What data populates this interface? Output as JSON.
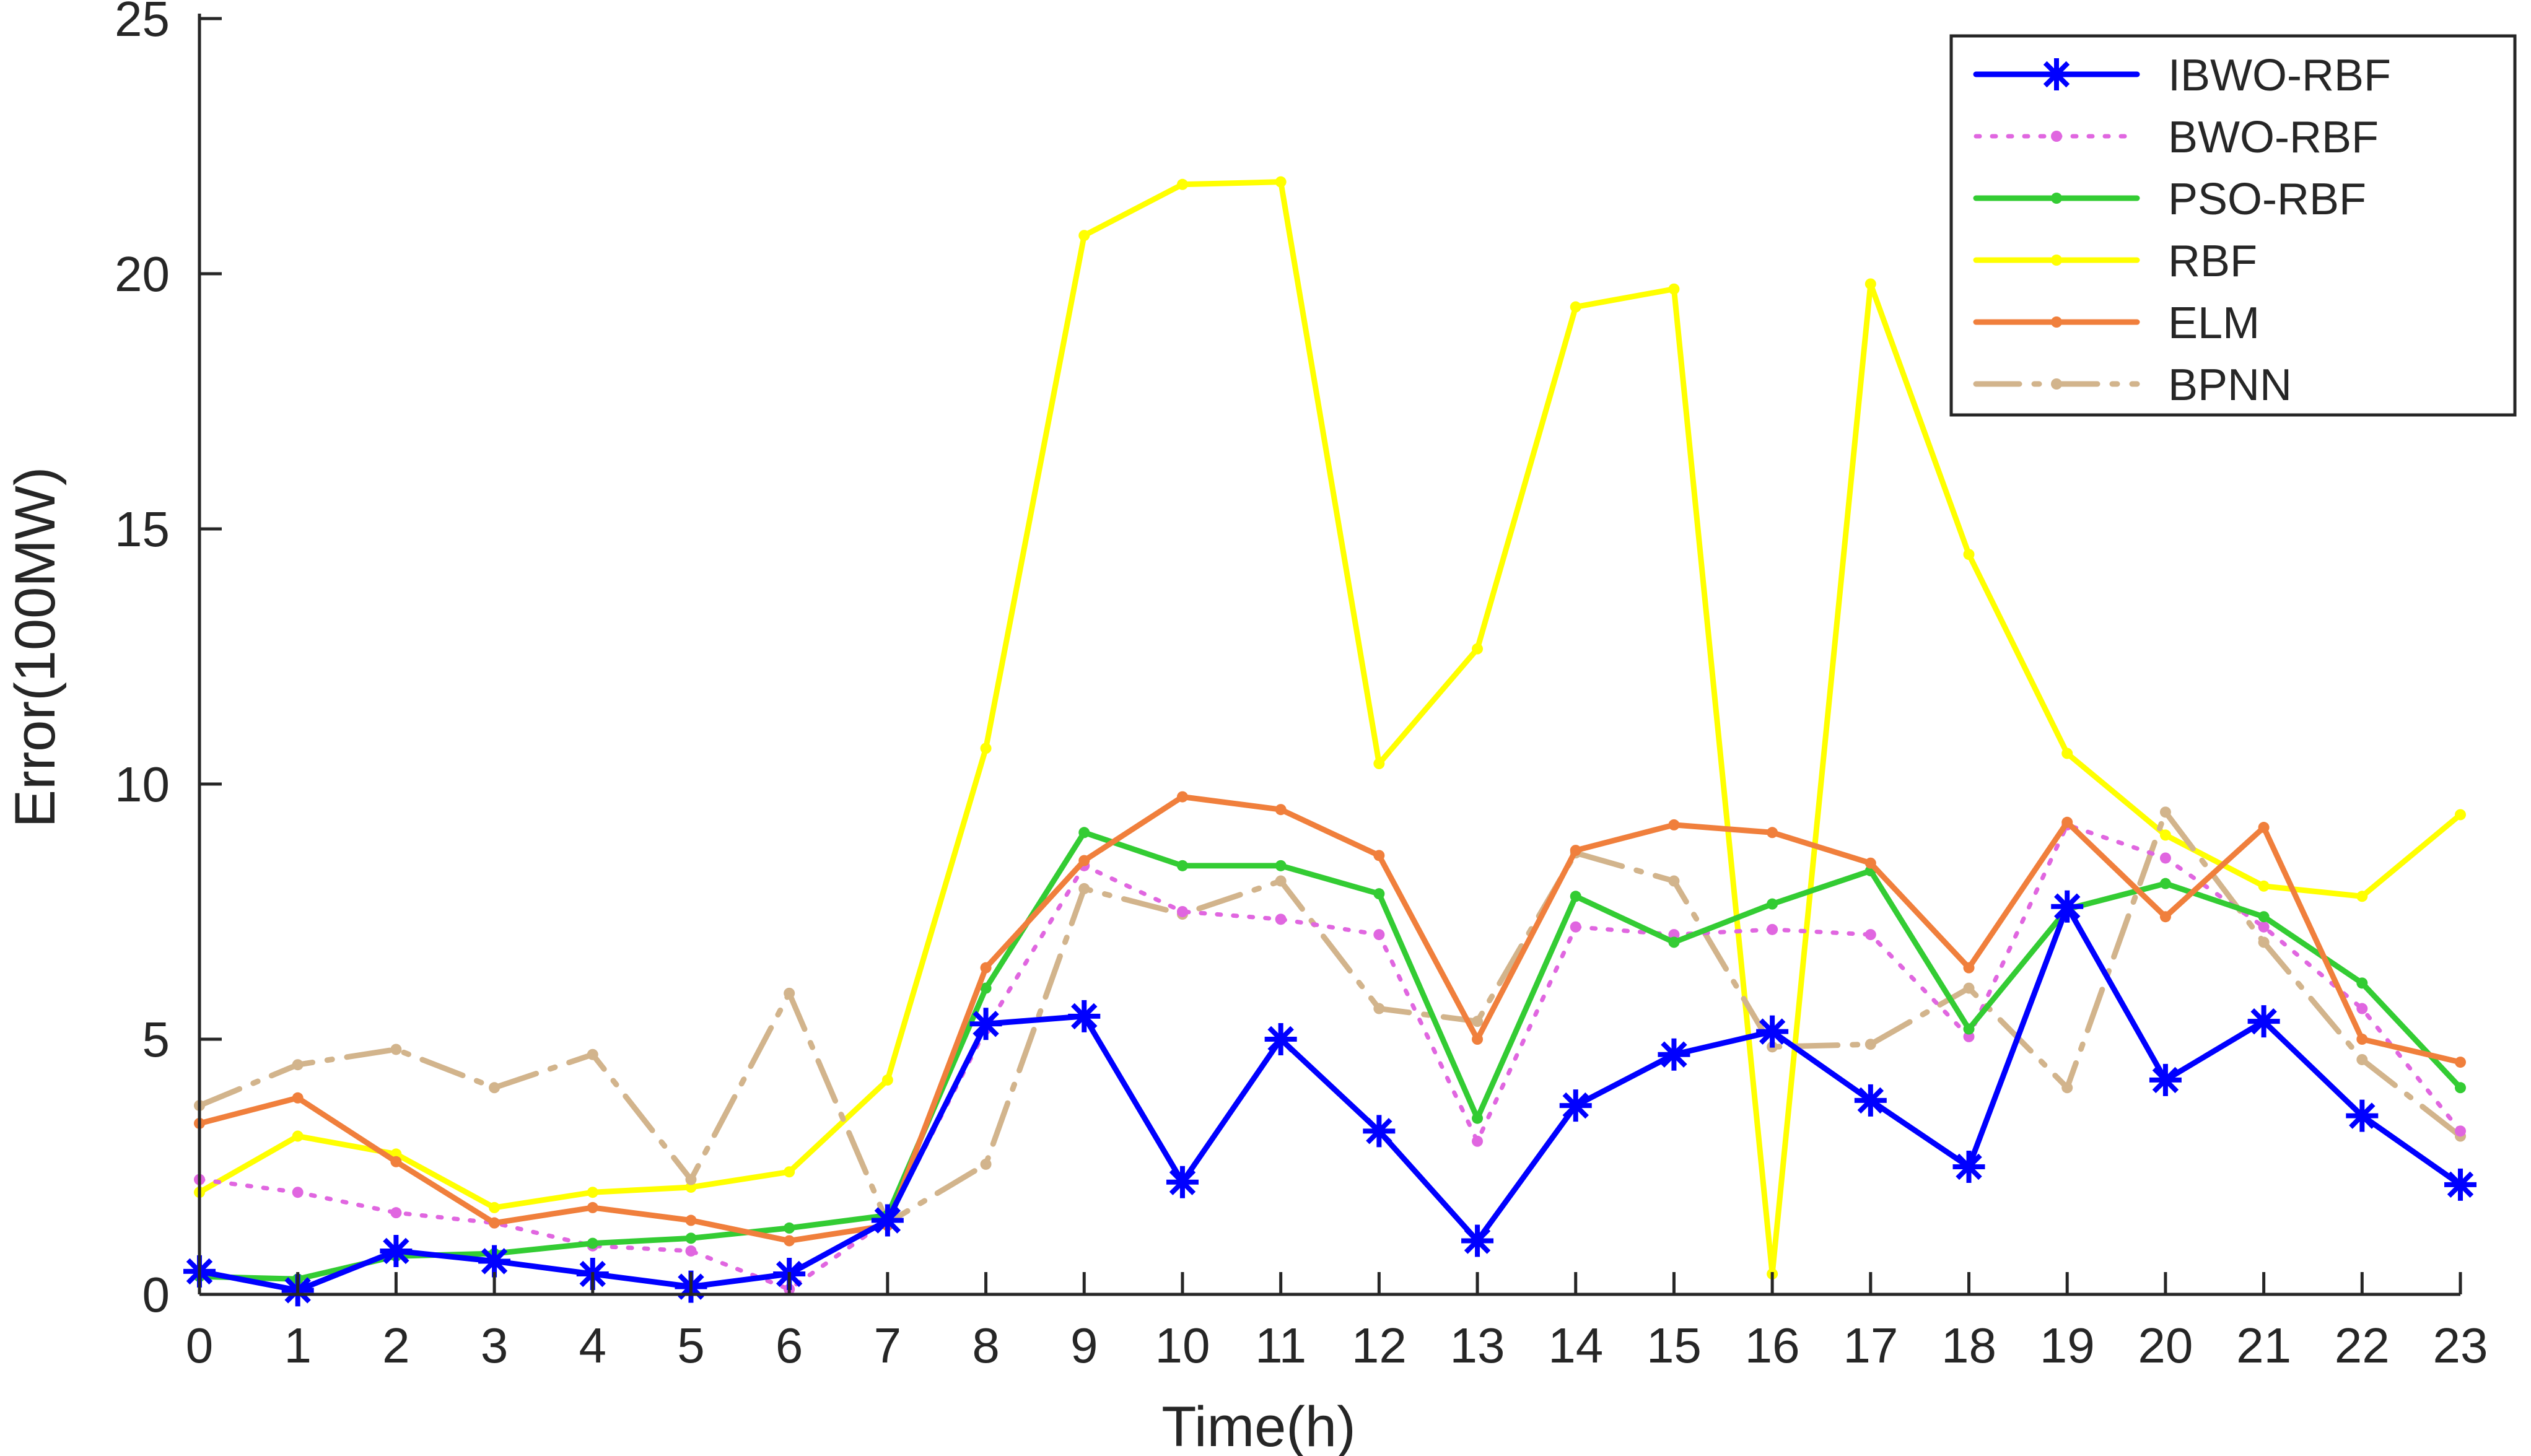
{
  "chart_data": {
    "type": "line",
    "title": "",
    "xlabel": "Time(h)",
    "ylabel": "Error(100MW)",
    "x": [
      0,
      1,
      2,
      3,
      4,
      5,
      6,
      7,
      8,
      9,
      10,
      11,
      12,
      13,
      14,
      15,
      16,
      17,
      18,
      19,
      20,
      21,
      22,
      23
    ],
    "xlim": [
      0,
      23
    ],
    "ylim": [
      0,
      25
    ],
    "yticks": [
      0,
      5,
      10,
      15,
      20,
      25
    ],
    "grid": false,
    "legend_position": "top-right",
    "series": [
      {
        "name": "IBWO-RBF",
        "color": "#0000ff",
        "marker": "asterisk",
        "line": "solid",
        "values": [
          0.45,
          0.08,
          0.85,
          0.65,
          0.4,
          0.15,
          0.4,
          1.45,
          5.3,
          5.45,
          2.2,
          5.0,
          3.2,
          1.05,
          3.7,
          4.7,
          5.15,
          3.8,
          2.5,
          7.6,
          4.2,
          5.35,
          3.5,
          2.15
        ]
      },
      {
        "name": "BWO-RBF",
        "color": "#e066e0",
        "marker": "dot",
        "line": "dotted",
        "values": [
          2.25,
          2.0,
          1.6,
          1.4,
          0.95,
          0.85,
          0.1,
          1.45,
          5.2,
          8.4,
          7.5,
          7.35,
          7.05,
          3.0,
          7.2,
          7.05,
          7.15,
          7.05,
          5.05,
          9.2,
          8.55,
          7.2,
          5.6,
          3.2
        ]
      },
      {
        "name": "PSO-RBF",
        "color": "#33cc33",
        "marker": "dot",
        "line": "solid",
        "values": [
          0.35,
          0.3,
          0.75,
          0.8,
          1.0,
          1.1,
          1.3,
          1.55,
          6.0,
          9.05,
          8.4,
          8.4,
          7.85,
          3.45,
          7.8,
          6.9,
          7.65,
          8.3,
          5.2,
          7.55,
          8.05,
          7.4,
          6.1,
          4.05
        ]
      },
      {
        "name": "RBF",
        "color": "#ffff00",
        "marker": "dot",
        "line": "solid",
        "values": [
          2.0,
          3.1,
          2.75,
          1.7,
          2.0,
          2.1,
          2.4,
          4.2,
          10.7,
          20.75,
          21.75,
          21.8,
          10.4,
          12.65,
          19.35,
          19.7,
          0.4,
          19.8,
          14.5,
          10.6,
          9.0,
          8.0,
          7.8,
          9.4
        ]
      },
      {
        "name": "ELM",
        "color": "#f07f3c",
        "marker": "dot",
        "line": "solid",
        "values": [
          3.35,
          3.85,
          2.6,
          1.4,
          1.7,
          1.45,
          1.05,
          1.35,
          6.4,
          8.5,
          9.75,
          9.5,
          8.6,
          5.0,
          8.7,
          9.2,
          9.05,
          8.45,
          6.4,
          9.25,
          7.4,
          9.15,
          5.0,
          4.55
        ]
      },
      {
        "name": "BPNN",
        "color": "#d2b48c",
        "marker": "dot",
        "line": "dashdot",
        "values": [
          3.7,
          4.5,
          4.8,
          4.05,
          4.7,
          2.25,
          5.9,
          1.4,
          2.55,
          7.95,
          7.45,
          8.1,
          5.6,
          5.35,
          8.65,
          8.1,
          4.85,
          4.9,
          6.0,
          4.05,
          9.45,
          6.9,
          4.6,
          3.1
        ]
      }
    ]
  }
}
